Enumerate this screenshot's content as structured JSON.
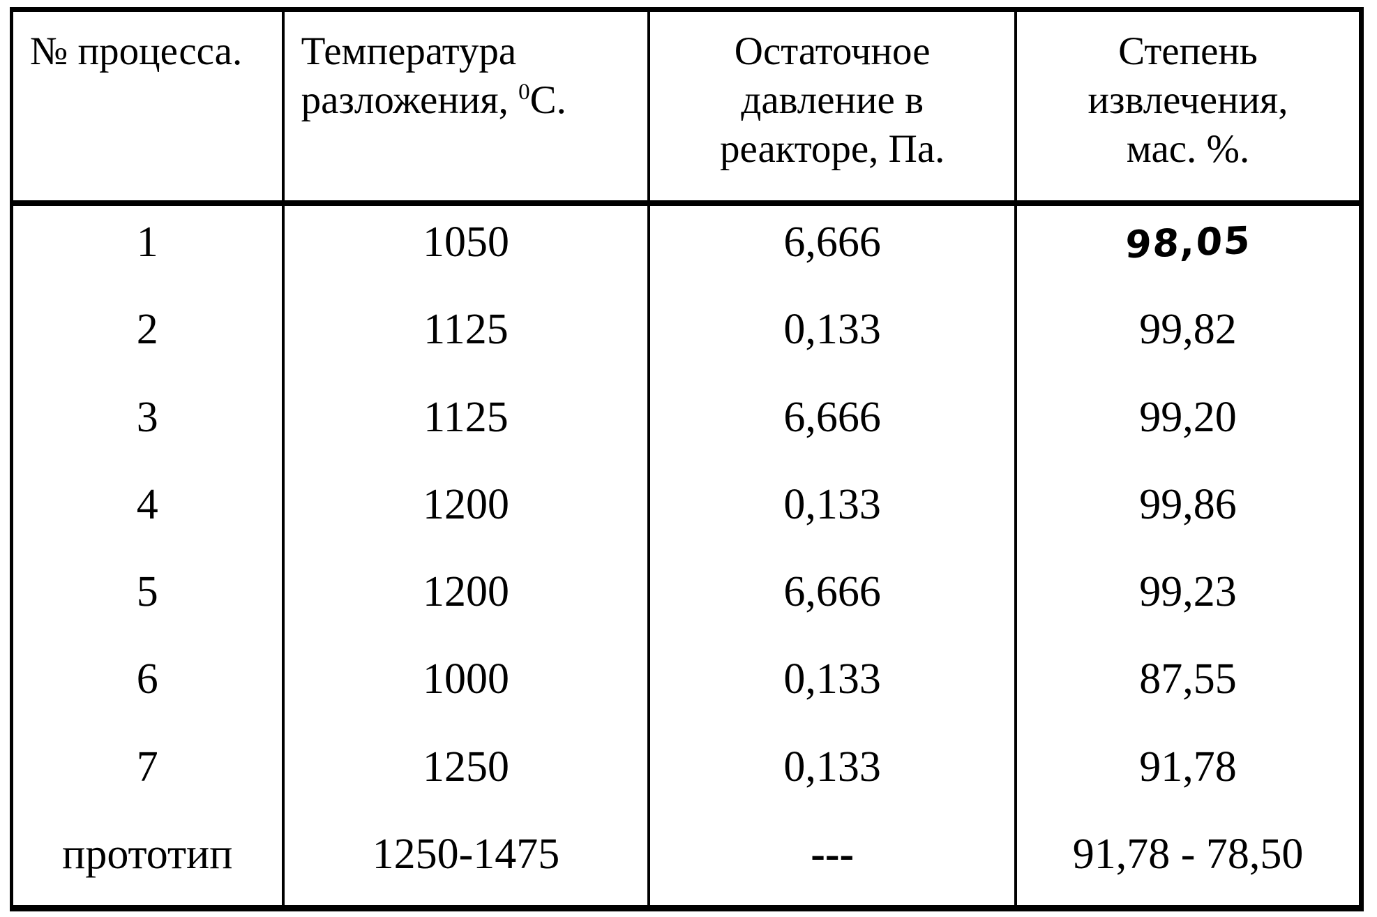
{
  "table": {
    "headers": {
      "process_no": "№ процесса.",
      "temperature": {
        "line1": "Температура",
        "line2_pre": "разложения, ",
        "sup": "0",
        "line2_post": "С."
      },
      "pressure": {
        "line1": "Остаточное",
        "line2": "давление в",
        "line3": "реакторе, Па."
      },
      "extraction": {
        "line1": "Степень",
        "line2": "извлечения,",
        "line3": "мас. %."
      }
    },
    "rows": [
      {
        "no": "1",
        "temp": "1050",
        "pressure": "6,666",
        "extraction": "98,05"
      },
      {
        "no": "2",
        "temp": "1125",
        "pressure": "0,133",
        "extraction": "99,82"
      },
      {
        "no": "3",
        "temp": "1125",
        "pressure": "6,666",
        "extraction": "99,20"
      },
      {
        "no": "4",
        "temp": "1200",
        "pressure": "0,133",
        "extraction": "99,86"
      },
      {
        "no": "5",
        "temp": "1200",
        "pressure": "6,666",
        "extraction": "99,23"
      },
      {
        "no": "6",
        "temp": "1000",
        "pressure": "0,133",
        "extraction": "87,55"
      },
      {
        "no": "7",
        "temp": "1250",
        "pressure": "0,133",
        "extraction": "91,78"
      },
      {
        "no": "прототип",
        "temp": "1250-1475",
        "pressure": "---",
        "extraction": "91,78 - 78,50"
      }
    ]
  },
  "colors": {
    "ink": "#000000",
    "paper": "#ffffff"
  }
}
